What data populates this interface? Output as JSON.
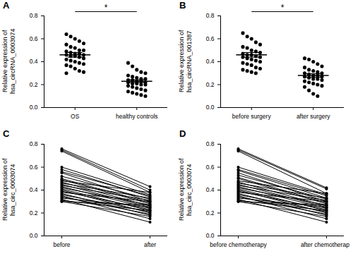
{
  "chart_data": [
    {
      "type": "scatter",
      "title": "A",
      "y_label": "Relative expression of hsa_circRNA_0003074",
      "categories": [
        "OS",
        "healthy controls"
      ],
      "values": [
        [
          0.64,
          0.62,
          0.6,
          0.58,
          0.56,
          0.55,
          0.53,
          0.52,
          0.5,
          0.5,
          0.49,
          0.48,
          0.47,
          0.47,
          0.46,
          0.46,
          0.45,
          0.45,
          0.44,
          0.43,
          0.42,
          0.41,
          0.4,
          0.39,
          0.38,
          0.37,
          0.36,
          0.34,
          0.32,
          0.31,
          0.3
        ],
        [
          0.39,
          0.36,
          0.33,
          0.31,
          0.3,
          0.28,
          0.27,
          0.26,
          0.25,
          0.25,
          0.24,
          0.24,
          0.23,
          0.23,
          0.22,
          0.22,
          0.21,
          0.21,
          0.2,
          0.2,
          0.19,
          0.18,
          0.17,
          0.16,
          0.15,
          0.14,
          0.13,
          0.12,
          0.11,
          0.1
        ]
      ],
      "means": [
        0.46,
        0.23
      ],
      "errors": [
        0.02,
        0.012
      ],
      "annotations": [
        "*"
      ],
      "color": "#000000",
      "marker": "circle",
      "ylim": [
        0,
        0.8
      ],
      "yticks": [
        {
          "value": 0,
          "label": "0.0"
        },
        {
          "value": 0.2,
          "label": "0.2"
        },
        {
          "value": 0.4,
          "label": "0.4"
        },
        {
          "value": 0.6,
          "label": "0.6"
        },
        {
          "value": 0.8,
          "label": "0.8"
        }
      ]
    },
    {
      "type": "scatter",
      "title": "B",
      "y_label": "Relative expression of hsa_circRNA_001387",
      "categories": [
        "before surgery",
        "after surgery"
      ],
      "values": [
        [
          0.65,
          0.62,
          0.6,
          0.57,
          0.55,
          0.53,
          0.52,
          0.5,
          0.49,
          0.48,
          0.47,
          0.46,
          0.46,
          0.45,
          0.44,
          0.44,
          0.43,
          0.42,
          0.41,
          0.4,
          0.39,
          0.38,
          0.37,
          0.35,
          0.34,
          0.33,
          0.32,
          0.31,
          0.3
        ],
        [
          0.43,
          0.42,
          0.4,
          0.38,
          0.36,
          0.35,
          0.33,
          0.32,
          0.31,
          0.3,
          0.3,
          0.29,
          0.28,
          0.28,
          0.27,
          0.27,
          0.26,
          0.25,
          0.25,
          0.24,
          0.23,
          0.22,
          0.21,
          0.2,
          0.19,
          0.18,
          0.15,
          0.12,
          0.1
        ]
      ],
      "means": [
        0.46,
        0.28
      ],
      "errors": [
        0.02,
        0.015
      ],
      "annotations": [
        "*"
      ],
      "color": "#000000",
      "marker": "circle",
      "ylim": [
        0,
        0.8
      ],
      "yticks": [
        {
          "value": 0,
          "label": "0.0"
        },
        {
          "value": 0.2,
          "label": "0.2"
        },
        {
          "value": 0.4,
          "label": "0.4"
        },
        {
          "value": 0.6,
          "label": "0.6"
        },
        {
          "value": 0.8,
          "label": "0.8"
        }
      ]
    },
    {
      "type": "line",
      "title": "C",
      "y_label": "Relative expression of hsa_circ_0003074",
      "categories": [
        "before",
        "after"
      ],
      "values": [
        [
          0.76,
          0.43
        ],
        [
          0.75,
          0.4
        ],
        [
          0.74,
          0.38
        ],
        [
          0.6,
          0.36
        ],
        [
          0.58,
          0.34
        ],
        [
          0.56,
          0.35
        ],
        [
          0.55,
          0.3
        ],
        [
          0.52,
          0.32
        ],
        [
          0.5,
          0.29
        ],
        [
          0.49,
          0.28
        ],
        [
          0.48,
          0.38
        ],
        [
          0.47,
          0.26
        ],
        [
          0.46,
          0.33
        ],
        [
          0.45,
          0.25
        ],
        [
          0.44,
          0.31
        ],
        [
          0.43,
          0.24
        ],
        [
          0.42,
          0.27
        ],
        [
          0.41,
          0.22
        ],
        [
          0.4,
          0.2
        ],
        [
          0.39,
          0.23
        ],
        [
          0.38,
          0.3
        ],
        [
          0.37,
          0.18
        ],
        [
          0.36,
          0.21
        ],
        [
          0.35,
          0.15
        ],
        [
          0.34,
          0.19
        ],
        [
          0.33,
          0.25
        ],
        [
          0.32,
          0.12
        ],
        [
          0.31,
          0.22
        ],
        [
          0.3,
          0.27
        ],
        [
          0.3,
          0.17
        ]
      ],
      "color": "#000000",
      "marker": "circle",
      "line_style": "solid",
      "ylim": [
        0,
        0.8
      ],
      "yticks": [
        {
          "value": 0,
          "label": "0.0"
        },
        {
          "value": 0.2,
          "label": "0.2"
        },
        {
          "value": 0.4,
          "label": "0.4"
        },
        {
          "value": 0.6,
          "label": "0.6"
        },
        {
          "value": 0.8,
          "label": "0.8"
        }
      ]
    },
    {
      "type": "line",
      "title": "D",
      "y_label": "Relative expression of hsa_circ_0003074",
      "categories": [
        "before chemotherapy",
        "after chemotherapy"
      ],
      "values": [
        [
          0.76,
          0.42
        ],
        [
          0.75,
          0.41
        ],
        [
          0.74,
          0.37
        ],
        [
          0.6,
          0.36
        ],
        [
          0.58,
          0.35
        ],
        [
          0.57,
          0.33
        ],
        [
          0.55,
          0.3
        ],
        [
          0.53,
          0.32
        ],
        [
          0.51,
          0.29
        ],
        [
          0.5,
          0.28
        ],
        [
          0.48,
          0.37
        ],
        [
          0.47,
          0.26
        ],
        [
          0.46,
          0.33
        ],
        [
          0.45,
          0.25
        ],
        [
          0.44,
          0.31
        ],
        [
          0.43,
          0.24
        ],
        [
          0.42,
          0.27
        ],
        [
          0.41,
          0.22
        ],
        [
          0.4,
          0.2
        ],
        [
          0.39,
          0.23
        ],
        [
          0.38,
          0.3
        ],
        [
          0.37,
          0.18
        ],
        [
          0.36,
          0.21
        ],
        [
          0.35,
          0.15
        ],
        [
          0.34,
          0.19
        ],
        [
          0.33,
          0.25
        ],
        [
          0.32,
          0.12
        ],
        [
          0.31,
          0.22
        ],
        [
          0.3,
          0.27
        ],
        [
          0.3,
          0.17
        ]
      ],
      "color": "#000000",
      "marker": "circle",
      "line_style": "solid",
      "ylim": [
        0,
        0.8
      ],
      "yticks": [
        {
          "value": 0,
          "label": "0.0"
        },
        {
          "value": 0.2,
          "label": "0.2"
        },
        {
          "value": 0.4,
          "label": "0.4"
        },
        {
          "value": 0.6,
          "label": "0.6"
        },
        {
          "value": 0.8,
          "label": "0.8"
        }
      ]
    }
  ]
}
